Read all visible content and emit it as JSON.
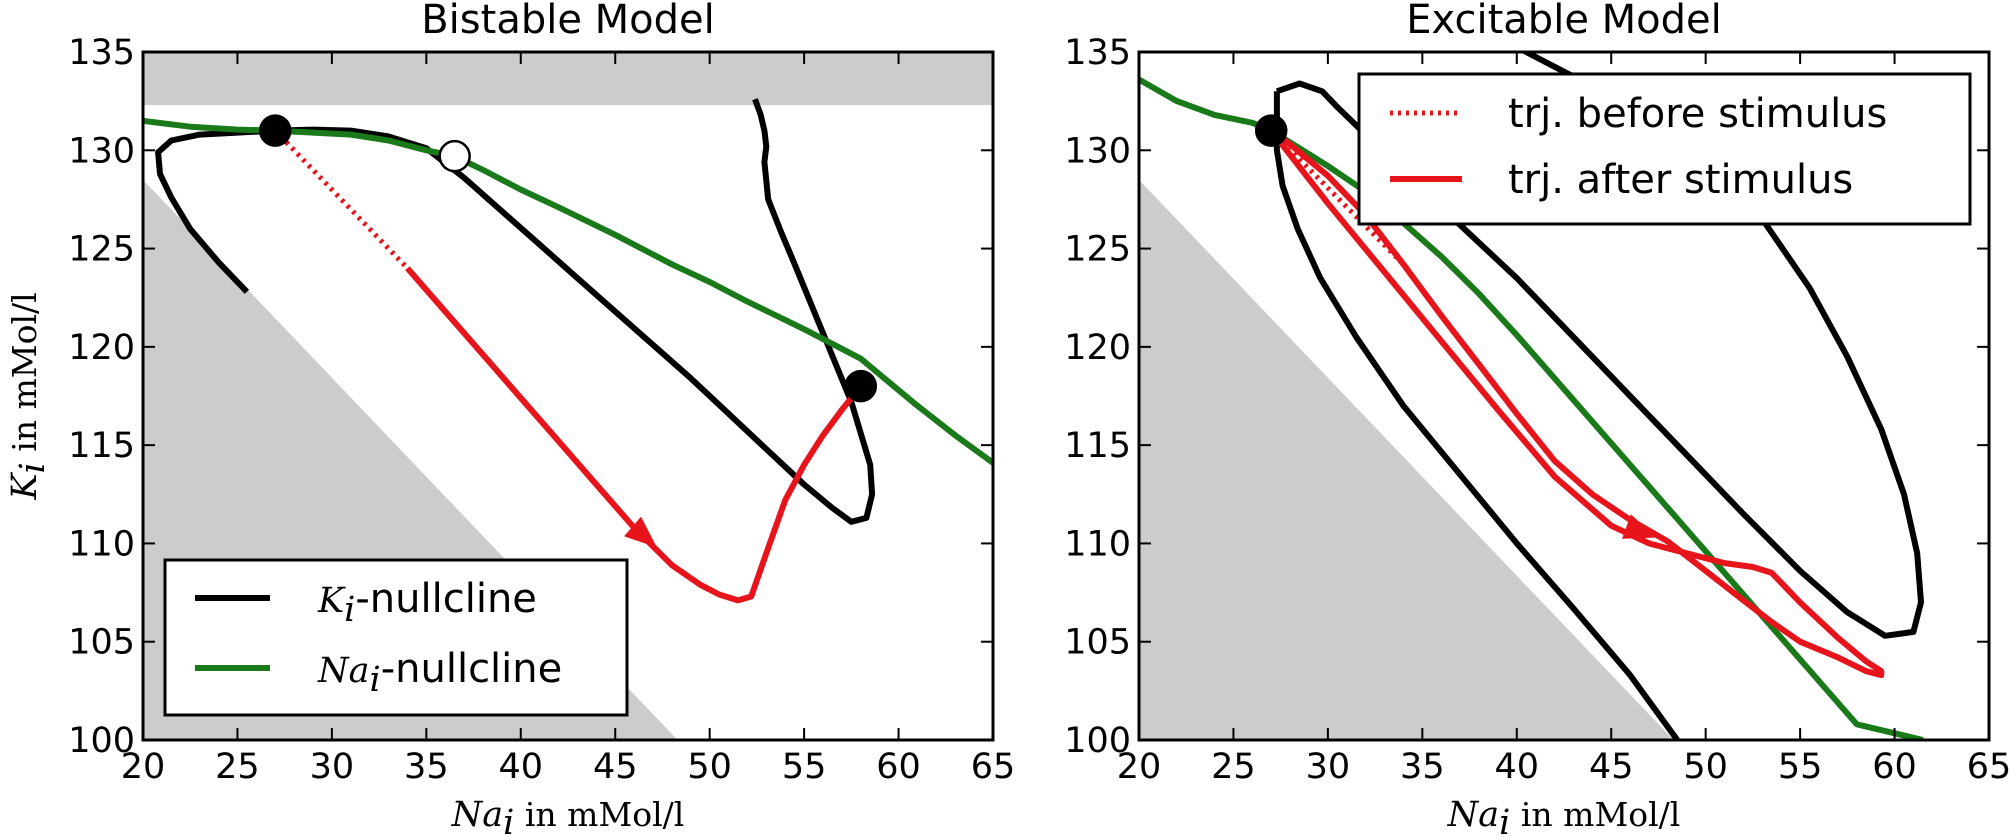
{
  "chart_data": [
    {
      "type": "line",
      "title": "Bistable Model",
      "xlabel_symbol": "Na",
      "xlabel_sub": "i",
      "xlabel_unit": " in mMol/l",
      "ylabel_symbol": "K",
      "ylabel_sub": "i",
      "ylabel_unit": " in mMol/l",
      "xlim": [
        20,
        65
      ],
      "ylim": [
        100,
        135
      ],
      "xticks": [
        "20",
        "25",
        "30",
        "35",
        "40",
        "45",
        "50",
        "55",
        "60",
        "65"
      ],
      "yticks": [
        "100",
        "105",
        "110",
        "115",
        "120",
        "125",
        "130",
        "135"
      ],
      "colors": {
        "k_nullcline": "#000000",
        "na_nullcline": "#1a7a1a",
        "trajectory": "#e8141b",
        "forbidden": "#cccccc"
      },
      "legend": {
        "placement": "lower-left",
        "entries": [
          {
            "symbol": "K",
            "sub": "i",
            "text": "-nullcline",
            "series": "k_nullcline"
          },
          {
            "symbol": "Na",
            "sub": "i",
            "text": "-nullcline",
            "series": "na_nullcline"
          }
        ]
      },
      "forbidden_regions": [
        {
          "shape": "band",
          "points": [
            [
              20,
              132.3
            ],
            [
              65,
              132.3
            ],
            [
              65,
              135
            ],
            [
              20,
              135
            ]
          ]
        },
        {
          "shape": "wedge",
          "points": [
            [
              20,
              128.5
            ],
            [
              48.3,
              100
            ],
            [
              20,
              100
            ]
          ]
        }
      ],
      "series": [
        {
          "key": "k_nullcline",
          "style": "solid",
          "x": [
            25.5,
            24,
            22.5,
            21.5,
            20.9,
            20.8,
            21.5,
            23,
            25,
            27,
            29,
            31,
            33,
            35,
            37,
            39,
            41,
            43,
            45,
            47,
            49,
            51,
            53,
            55,
            56.5,
            57.5,
            58.3,
            58.6,
            58.5,
            57.5,
            56,
            54.5
          ],
          "y": [
            122.8,
            124.3,
            126,
            127.6,
            128.8,
            129.9,
            130.5,
            130.8,
            130.9,
            131,
            131.05,
            131,
            130.7,
            130.1,
            128.6,
            126.9,
            125.2,
            123.5,
            121.8,
            120.1,
            118.4,
            116.6,
            114.8,
            113,
            111.8,
            111.1,
            111.3,
            112.5,
            114,
            117.2,
            120.7,
            124.2
          ]
        },
        {
          "key": "k_nullcline_branch",
          "style": "solid",
          "x": [
            54.5,
            53.8,
            53.1,
            52.9,
            53,
            52.9,
            52.7,
            52.4
          ],
          "y": [
            124.2,
            125.8,
            127.5,
            129.4,
            130.2,
            131,
            131.8,
            132.6
          ]
        },
        {
          "key": "na_nullcline",
          "style": "solid",
          "x": [
            20,
            22.5,
            25,
            27,
            29,
            31,
            33,
            35,
            36.5,
            38,
            40,
            42,
            45,
            48,
            50,
            52,
            55,
            58,
            61,
            63,
            65
          ],
          "y": [
            131.5,
            131.2,
            131.05,
            131,
            130.9,
            130.8,
            130.5,
            130,
            129.7,
            129,
            128,
            127.1,
            125.7,
            124.2,
            123.3,
            122.3,
            120.9,
            119.4,
            117,
            115.5,
            114.1
          ]
        },
        {
          "key": "trajectory_before",
          "style": "dotted",
          "x": [
            27,
            34
          ],
          "y": [
            131,
            124
          ]
        },
        {
          "key": "trajectory_after",
          "style": "solid",
          "x": [
            34,
            36,
            38,
            40,
            42,
            44,
            46,
            48,
            49.5,
            50.5,
            51.5,
            52.2,
            53,
            54,
            55,
            56,
            57,
            58
          ],
          "y": [
            124,
            121.8,
            119.6,
            117.4,
            115.2,
            113,
            110.8,
            108.9,
            107.9,
            107.4,
            107.1,
            107.3,
            109.5,
            112.2,
            114,
            115.5,
            116.8,
            118
          ]
        }
      ],
      "arrow_at": {
        "x": 47.2,
        "y": 109.8
      },
      "fixed_points": [
        {
          "x": 27,
          "y": 131,
          "kind": "stable"
        },
        {
          "x": 36.5,
          "y": 129.7,
          "kind": "unstable"
        },
        {
          "x": 58,
          "y": 118,
          "kind": "stable"
        }
      ]
    },
    {
      "type": "line",
      "title": "Excitable Model",
      "xlabel_symbol": "Na",
      "xlabel_sub": "i",
      "xlabel_unit": " in mMol/l",
      "xlim": [
        20,
        65
      ],
      "ylim": [
        100,
        135
      ],
      "xticks": [
        "20",
        "25",
        "30",
        "35",
        "40",
        "45",
        "50",
        "55",
        "60",
        "65"
      ],
      "yticks": [
        "100",
        "105",
        "110",
        "115",
        "120",
        "125",
        "130",
        "135"
      ],
      "legend": {
        "placement": "top-right",
        "entries": [
          {
            "text": "trj. before stimulus",
            "series": "trajectory_before"
          },
          {
            "text": "trj. after stimulus",
            "series": "trajectory_after"
          }
        ]
      },
      "forbidden_regions": [
        {
          "shape": "wedge",
          "points": [
            [
              20,
              128.5
            ],
            [
              48.3,
              100
            ],
            [
              20,
              100
            ]
          ]
        }
      ],
      "series": [
        {
          "key": "k_nullcline_outer",
          "style": "solid",
          "x": [
            48.5,
            46,
            43,
            40,
            37,
            34,
            31.5,
            29.6,
            28.4,
            27.6,
            27.3,
            27.3
          ],
          "y": [
            100,
            103.3,
            106.7,
            110,
            113.5,
            117,
            120.5,
            123.5,
            126,
            128.2,
            130,
            133
          ]
        },
        {
          "key": "k_nullcline_loop",
          "style": "solid",
          "x": [
            27.3,
            28.5,
            29.7,
            30.5,
            32,
            34,
            37,
            40,
            43,
            46,
            49,
            52,
            55,
            57.5,
            59.5,
            61,
            61.4,
            61.2,
            60.5,
            59.3,
            57.5,
            55.5,
            53,
            50,
            47,
            44.5,
            42.5,
            41.3,
            40.5,
            39.9
          ],
          "y": [
            133,
            133.4,
            133,
            132.2,
            130.8,
            128.8,
            126.2,
            123.5,
            120.5,
            117.5,
            114.5,
            111.5,
            108.6,
            106.5,
            105.3,
            105.5,
            107,
            109.5,
            112.5,
            115.8,
            119.5,
            123,
            126.5,
            129.5,
            131.7,
            133,
            134,
            134.6,
            135,
            135.3
          ]
        },
        {
          "key": "na_nullcline",
          "style": "solid",
          "x": [
            20,
            22,
            24,
            26,
            27,
            28,
            29,
            30,
            32,
            34,
            36,
            38,
            40,
            43,
            46,
            50,
            54,
            58,
            61.5
          ],
          "y": [
            133.6,
            132.5,
            131.8,
            131.4,
            131,
            130.4,
            129.8,
            129.2,
            127.9,
            126.3,
            124.6,
            122.7,
            120.6,
            117.3,
            114,
            109.6,
            105.2,
            100.8,
            100
          ]
        },
        {
          "key": "trajectory_before",
          "style": "dotted",
          "x": [
            27,
            34.2
          ],
          "y": [
            131,
            124
          ]
        },
        {
          "key": "trajectory_after",
          "style": "solid",
          "x": [
            27,
            30,
            33,
            36,
            39,
            42,
            45,
            47,
            49,
            51,
            52.5,
            53.5,
            55,
            57,
            58.5,
            59.3,
            59.3,
            58.5,
            57,
            55,
            53.5,
            52,
            50,
            48,
            46,
            44,
            42,
            40,
            38,
            36,
            34,
            32,
            30,
            28,
            27
          ],
          "y": [
            131,
            127.3,
            123.8,
            120.3,
            116.8,
            113.4,
            110.9,
            110,
            109.5,
            109,
            108.8,
            108.5,
            107,
            105.2,
            104,
            103.5,
            103.3,
            103.5,
            104.2,
            105,
            106,
            107.1,
            108.6,
            110.1,
            111.2,
            112.5,
            114.2,
            116.6,
            119.1,
            121.6,
            124.2,
            126.7,
            128.7,
            130.3,
            131
          ]
        }
      ],
      "arrow_at": {
        "x": 47.4,
        "y": 110.3
      },
      "fixed_points": [
        {
          "x": 27,
          "y": 131,
          "kind": "stable"
        }
      ]
    }
  ]
}
